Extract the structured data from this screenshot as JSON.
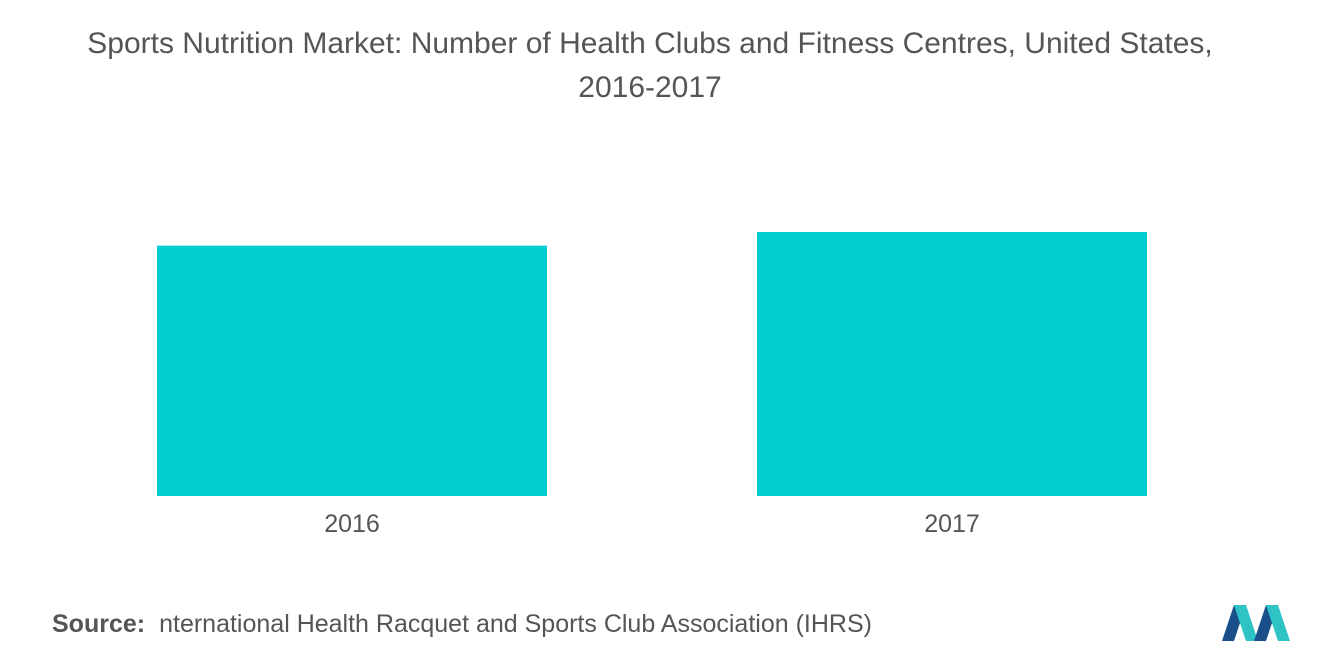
{
  "chart_data": {
    "type": "bar",
    "title": "Sports Nutrition Market: Number of Health Clubs and Fitness Centres, United States,\n2016-2017",
    "categories": [
      "2016",
      "2017"
    ],
    "values": [
      36500,
      38500
    ],
    "ylim": [
      0,
      38500
    ],
    "xlabel": "",
    "ylabel": "",
    "grid": false,
    "legend": "none",
    "color": "#00CED1"
  },
  "source": {
    "label": "Source:",
    "text": "nternational Health Racquet and Sports Club Association (IHRS)"
  },
  "logo": {
    "icon": "mordor-intelligence-logo",
    "colors": [
      "#1B4F8A",
      "#2EC4C6"
    ]
  }
}
